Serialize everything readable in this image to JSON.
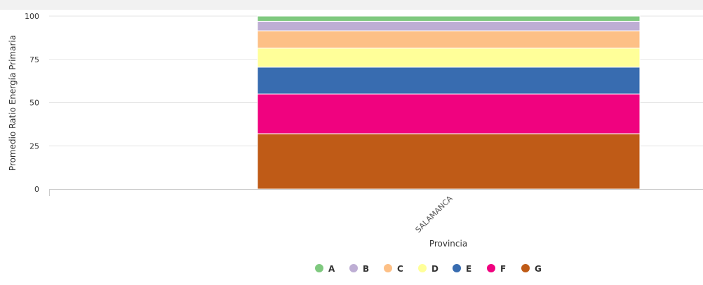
{
  "chart_data": {
    "type": "bar",
    "stacked": true,
    "categories": [
      "SALAMANCA"
    ],
    "xlabel": "Provincia",
    "ylabel": "Promedio Ratio Energía Primaria",
    "ylim": [
      0,
      100
    ],
    "yticks": [
      0,
      25,
      50,
      75,
      100
    ],
    "grid": true,
    "legend_position": "bottom",
    "series": [
      {
        "name": "G",
        "values": [
          32
        ],
        "color": "#bf5b17"
      },
      {
        "name": "F",
        "values": [
          23
        ],
        "color": "#f0027f"
      },
      {
        "name": "E",
        "values": [
          15.5
        ],
        "color": "#386cb0"
      },
      {
        "name": "D",
        "values": [
          11
        ],
        "color": "#ffff99"
      },
      {
        "name": "C",
        "values": [
          10
        ],
        "color": "#fdc086"
      },
      {
        "name": "B",
        "values": [
          5.5
        ],
        "color": "#beaed4"
      },
      {
        "name": "A",
        "values": [
          3
        ],
        "color": "#7fc97f"
      }
    ],
    "legend_order": [
      "A",
      "B",
      "C",
      "D",
      "E",
      "F",
      "G"
    ]
  }
}
